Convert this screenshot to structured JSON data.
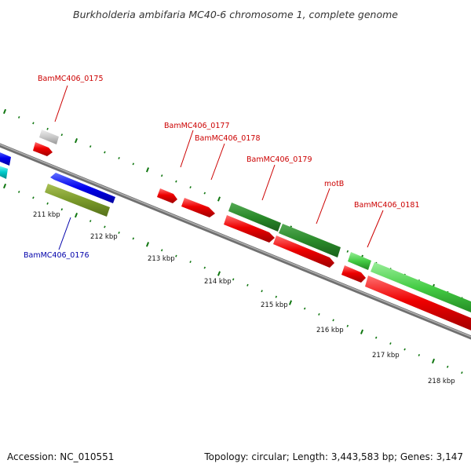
{
  "title": "Burkholderia ambifaria MC40-6 chromosome 1, complete genome",
  "footer": {
    "accession": "Accession: NC_010551",
    "summary": "Topology: circular; Length: 3,443,583 bp; Genes: 3,147"
  },
  "ticks": [
    "211 kbp",
    "212 kbp",
    "213 kbp",
    "214 kbp",
    "215 kbp",
    "216 kbp",
    "217 kbp",
    "218 kbp"
  ],
  "gene_labels": [
    {
      "text": "BamMC406_0175",
      "color": "#cc0000"
    },
    {
      "text": "BamMC406_0176",
      "color": "#0000aa"
    },
    {
      "text": "BamMC406_0177",
      "color": "#cc0000"
    },
    {
      "text": "BamMC406_0178",
      "color": "#cc0000"
    },
    {
      "text": "BamMC406_0179",
      "color": "#cc0000"
    },
    {
      "text": "motB",
      "color": "#cc0000"
    },
    {
      "text": "BamMC406_0181",
      "color": "#cc0000"
    }
  ],
  "colors": {
    "backbone": "#808080",
    "cds": "#ee0000",
    "gene_dark": "#2a8a2a",
    "gene_light": "#44cc44",
    "forward_blue": "#0000ee",
    "misc_olive": "#7a9a2a",
    "grey_feature": "#c8c8c8",
    "cyan_feature": "#00cccc",
    "gc_dots": "#117711"
  }
}
